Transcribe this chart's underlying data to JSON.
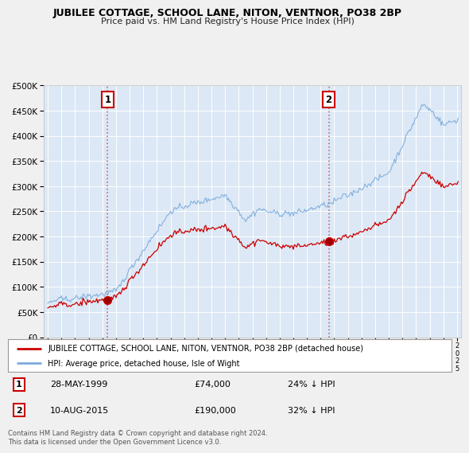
{
  "title": "JUBILEE COTTAGE, SCHOOL LANE, NITON, VENTNOR, PO38 2BP",
  "subtitle": "Price paid vs. HM Land Registry's House Price Index (HPI)",
  "legend_line1": "JUBILEE COTTAGE, SCHOOL LANE, NITON, VENTNOR, PO38 2BP (detached house)",
  "legend_line2": "HPI: Average price, detached house, Isle of Wight",
  "footnote": "Contains HM Land Registry data © Crown copyright and database right 2024.\nThis data is licensed under the Open Government Licence v3.0.",
  "sale1_date": "28-MAY-1999",
  "sale1_price": "£74,000",
  "sale1_hpi": "24% ↓ HPI",
  "sale2_date": "10-AUG-2015",
  "sale2_price": "£190,000",
  "sale2_hpi": "32% ↓ HPI",
  "sale1_year": 1999.38,
  "sale1_value": 74000,
  "sale2_year": 2015.6,
  "sale2_value": 190000,
  "background_color": "#f0f0f0",
  "plot_bg": "#dce8f5",
  "red_line_color": "#cc0000",
  "blue_line_color": "#7aaadd",
  "grid_color": "#c8d8e8",
  "dashed_color": "#cc6666",
  "ylim_max": 500000,
  "ylim_min": 0
}
